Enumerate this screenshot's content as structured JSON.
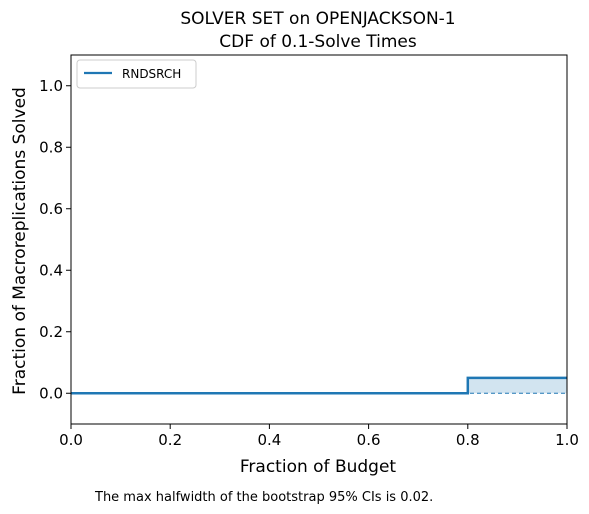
{
  "chart_data": {
    "type": "line",
    "title_line1": "SOLVER SET on OPENJACKSON-1",
    "title_line2": "CDF of 0.1-Solve Times",
    "xlabel": "Fraction of Budget",
    "ylabel": "Fraction of Macroreplications Solved",
    "xlim": [
      0.0,
      1.0
    ],
    "ylim": [
      -0.1,
      1.1
    ],
    "xticks": [
      0.0,
      0.2,
      0.4,
      0.6,
      0.8,
      1.0
    ],
    "xtick_labels": [
      "0.0",
      "0.2",
      "0.4",
      "0.6",
      "0.8",
      "1.0"
    ],
    "yticks": [
      0.0,
      0.2,
      0.4,
      0.6,
      0.8,
      1.0
    ],
    "ytick_labels": [
      "0.0",
      "0.2",
      "0.4",
      "0.6",
      "0.8",
      "1.0"
    ],
    "grid": false,
    "legend_position": "top-left",
    "series": [
      {
        "name": "RNDSRCH",
        "color": "#1f77b4",
        "x": [
          0.0,
          0.8,
          0.8,
          1.0
        ],
        "y": [
          0.0,
          0.0,
          0.05,
          0.05
        ],
        "ci_upper": [
          0.0,
          0.0,
          0.05,
          0.05
        ],
        "ci_lower": [
          0.0,
          0.0,
          0.0,
          0.0
        ]
      }
    ]
  },
  "footnote": "The max halfwidth of the bootstrap 95% CIs is 0.02."
}
